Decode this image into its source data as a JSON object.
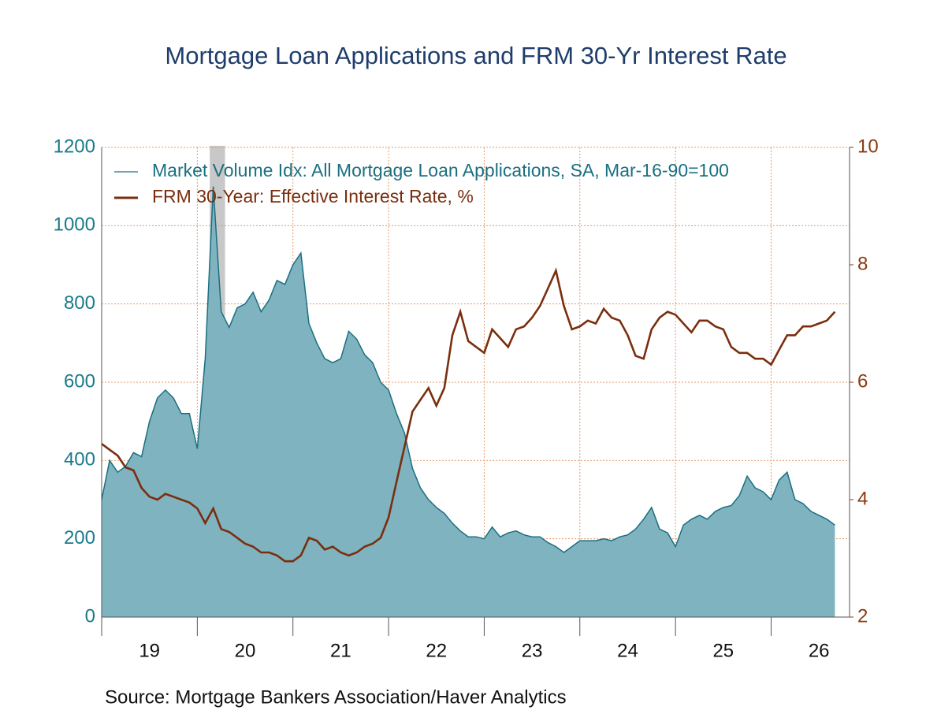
{
  "chart_data": {
    "type": "area-line",
    "title": "Mortgage Loan Applications and FRM 30-Yr Interest Rate",
    "source": "Source:  Mortgage Bankers Association/Haver Analytics",
    "legend": "upper left",
    "grid": true,
    "recession": [
      20.13,
      20.29
    ],
    "recession_color": "#c8c8c8",
    "xlim": [
      19,
      26.82
    ],
    "xticks": [
      {
        "value": 19.5,
        "label": "19"
      },
      {
        "value": 20.5,
        "label": "20"
      },
      {
        "value": 21.5,
        "label": "21"
      },
      {
        "value": 22.5,
        "label": "22"
      },
      {
        "value": 23.5,
        "label": "23"
      },
      {
        "value": 24.5,
        "label": "24"
      },
      {
        "value": 25.5,
        "label": "25"
      },
      {
        "value": 26.5,
        "label": "26"
      }
    ],
    "ylim": [
      0,
      1200
    ],
    "yticks": [
      0,
      200,
      400,
      600,
      800,
      1000,
      1200
    ],
    "y2lim": [
      2,
      10
    ],
    "y2ticks": [
      2,
      4,
      6,
      8,
      10
    ],
    "x": [
      19,
      19.083,
      19.167,
      19.25,
      19.333,
      19.417,
      19.5,
      19.583,
      19.667,
      19.75,
      19.833,
      19.917,
      20,
      20.083,
      20.167,
      20.25,
      20.333,
      20.417,
      20.5,
      20.583,
      20.667,
      20.75,
      20.833,
      20.917,
      21,
      21.083,
      21.167,
      21.25,
      21.333,
      21.417,
      21.5,
      21.583,
      21.667,
      21.75,
      21.833,
      21.917,
      22,
      22.083,
      22.167,
      22.25,
      22.333,
      22.417,
      22.5,
      22.583,
      22.667,
      22.75,
      22.833,
      22.917,
      23,
      23.083,
      23.167,
      23.25,
      23.333,
      23.417,
      23.5,
      23.583,
      23.667,
      23.75,
      23.833,
      23.917,
      24,
      24.083,
      24.167,
      24.25,
      24.333,
      24.417,
      24.5,
      24.583,
      24.667,
      24.75,
      24.833,
      24.917,
      25,
      25.083,
      25.167,
      25.25,
      25.333,
      25.417,
      25.5,
      25.583,
      25.667,
      25.75,
      25.833,
      25.917,
      26,
      26.083,
      26.167,
      26.25,
      26.333,
      26.417,
      26.5,
      26.583,
      26.667
    ],
    "series": [
      {
        "name": "Market Volume Idx: All Mortgage Loan Applications, SA, Mar-16-90=100",
        "color": "#1a6f80",
        "fill": "#80b3c0",
        "axis": "y",
        "values": [
          300,
          400,
          370,
          385,
          420,
          410,
          500,
          560,
          580,
          560,
          520,
          520,
          430,
          660,
          1100,
          780,
          740,
          790,
          800,
          830,
          780,
          810,
          860,
          850,
          900,
          930,
          750,
          700,
          660,
          650,
          660,
          730,
          710,
          670,
          650,
          600,
          580,
          520,
          470,
          380,
          330,
          300,
          280,
          265,
          240,
          220,
          205,
          205,
          200,
          230,
          205,
          215,
          220,
          210,
          205,
          205,
          190,
          180,
          165,
          180,
          195,
          195,
          195,
          200,
          195,
          205,
          210,
          225,
          250,
          280,
          225,
          215,
          180,
          235,
          250,
          260,
          250,
          270,
          280,
          285,
          310,
          360,
          330,
          320,
          300,
          350,
          370,
          300,
          290,
          270,
          260,
          250,
          235
        ]
      },
      {
        "name": "FRM 30-Year: Effective Interest Rate, %",
        "color": "#7a2e0e",
        "axis": "y2",
        "values": [
          4.95,
          4.85,
          4.75,
          4.55,
          4.5,
          4.2,
          4.05,
          4.0,
          4.1,
          4.05,
          4.0,
          3.95,
          3.85,
          3.6,
          3.85,
          3.5,
          3.45,
          3.35,
          3.25,
          3.2,
          3.1,
          3.1,
          3.05,
          2.95,
          2.95,
          3.05,
          3.35,
          3.3,
          3.15,
          3.2,
          3.1,
          3.05,
          3.1,
          3.2,
          3.25,
          3.35,
          3.7,
          4.3,
          4.9,
          5.5,
          5.7,
          5.9,
          5.6,
          5.9,
          6.8,
          7.2,
          6.7,
          6.6,
          6.5,
          6.9,
          6.75,
          6.6,
          6.9,
          6.95,
          7.1,
          7.3,
          7.6,
          7.9,
          7.3,
          6.9,
          6.95,
          7.05,
          7.0,
          7.25,
          7.1,
          7.05,
          6.8,
          6.45,
          6.4,
          6.9,
          7.1,
          7.2,
          7.15,
          7.0,
          6.85,
          7.05,
          7.05,
          6.95,
          6.9,
          6.6,
          6.5,
          6.5,
          6.4,
          6.4,
          6.3,
          6.55,
          6.8,
          6.8,
          6.95,
          6.95,
          7.0,
          7.05,
          7.2
        ]
      }
    ],
    "y_color": "#1a7a8a",
    "y2_color": "#8b3a10",
    "grid_color": "#e49a6a",
    "title_color": "#1f3d6b"
  }
}
